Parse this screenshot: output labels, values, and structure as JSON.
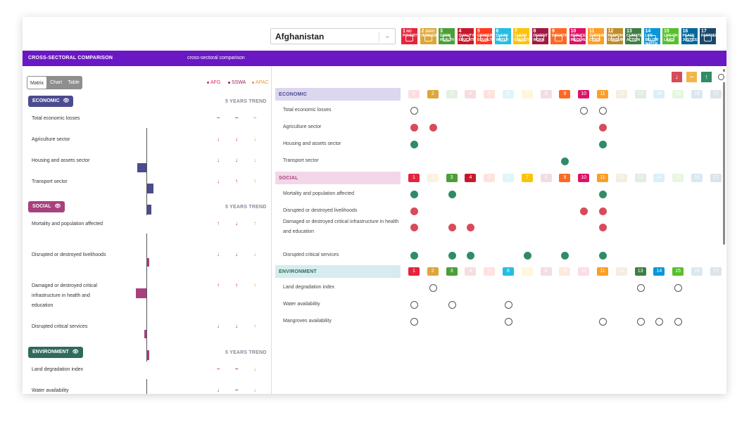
{
  "country": {
    "selected": "Afghanistan"
  },
  "sdg_icons": [
    {
      "n": "1",
      "t": "NO POVERTY",
      "color": "#e5243b"
    },
    {
      "n": "2",
      "t": "ZERO HUNGER",
      "color": "#dda63a"
    },
    {
      "n": "3",
      "t": "GOOD HEALTH",
      "color": "#4c9f38"
    },
    {
      "n": "4",
      "t": "QUALITY EDUCATION",
      "color": "#c5192d"
    },
    {
      "n": "5",
      "t": "GENDER EQUALITY",
      "color": "#ff3a21"
    },
    {
      "n": "6",
      "t": "CLEAN WATER",
      "color": "#26bde2"
    },
    {
      "n": "7",
      "t": "CLEAN ENERGY",
      "color": "#fcc30b"
    },
    {
      "n": "8",
      "t": "DECENT WORK",
      "color": "#a21942"
    },
    {
      "n": "9",
      "t": "INDUSTRY",
      "color": "#fd6925"
    },
    {
      "n": "10",
      "t": "REDUCED INEQUALITIES",
      "color": "#dd1367"
    },
    {
      "n": "11",
      "t": "SUSTAINABLE CITIES",
      "color": "#fd9d24"
    },
    {
      "n": "12",
      "t": "RESPONSIBLE CONSUMPTION",
      "color": "#bf8b2e"
    },
    {
      "n": "13",
      "t": "CLIMATE ACTION",
      "color": "#3f7e44"
    },
    {
      "n": "14",
      "t": "LIFE BELOW WATER",
      "color": "#0a97d9"
    },
    {
      "n": "15",
      "t": "LIFE ON LAND",
      "color": "#56c02b"
    },
    {
      "n": "16",
      "t": "PEACE JUSTICE",
      "color": "#00689d"
    },
    {
      "n": "17",
      "t": "PARTNERSHIPS",
      "color": "#19486a"
    }
  ],
  "header": {
    "title": "CROSS-SECTORAL COMPARISON",
    "subtitle": "cross-sectoral comparison"
  },
  "view_options": [
    "Matrix",
    "Chart",
    "Table"
  ],
  "legend": [
    {
      "label": "AFG",
      "color": "#d0306a"
    },
    {
      "label": "SSWA",
      "color": "#9b1d5a"
    },
    {
      "label": "APAC",
      "color": "#f0963a"
    }
  ],
  "trend_header": "5 YEARS TREND",
  "left_sectors": [
    {
      "name": "ECONOMIC",
      "color": "#4b4b8f",
      "indicators": [
        {
          "label": "Total economic losses",
          "trends": [
            "–",
            "–",
            "–"
          ]
        },
        {
          "label": "Agriculture sector",
          "trends": [
            "↓",
            "↓",
            "↓"
          ]
        },
        {
          "label": "Housing and assets sector",
          "trends": [
            "↓",
            "↓",
            "↓"
          ]
        },
        {
          "label": "Transport sector",
          "trends": [
            "↓",
            "↑",
            "↑"
          ]
        }
      ]
    },
    {
      "name": "SOCIAL",
      "color": "#a8407f",
      "indicators": [
        {
          "label": "Mortality and population affected",
          "trends": [
            "↑",
            "↓",
            "↑"
          ]
        },
        {
          "label": "Disrupted or destroyed livelihoods",
          "trends": [
            "↓",
            "↓",
            "↓"
          ]
        },
        {
          "label": "Damaged or destroyed critical infrastructure in health and education",
          "trends": [
            "↑",
            "↑",
            "↑"
          ]
        },
        {
          "label": "Disrupted critical services",
          "trends": [
            "↓",
            "↓",
            "↑"
          ]
        }
      ]
    },
    {
      "name": "ENVIRONMENT",
      "color": "#2f6b5b",
      "indicators": [
        {
          "label": "Land degradation index",
          "trends": [
            "–",
            "–",
            "↓"
          ]
        },
        {
          "label": "Water availability",
          "trends": [
            "↓",
            "–",
            "↓"
          ]
        }
      ]
    }
  ],
  "trend_colors": {
    "AFG": "#c9304f",
    "SSWA": "#9b1d3a",
    "APAC": "#e8913a"
  },
  "matrix_controls": [
    {
      "symbol": "↓",
      "color": "#d84b5a"
    },
    {
      "symbol": "–",
      "color": "#f1b548"
    },
    {
      "symbol": "↑",
      "color": "#2f8c66"
    },
    {
      "symbol": "○",
      "color": "#ffffff"
    }
  ],
  "matrix_sectors": [
    {
      "name": "ECONOMIC",
      "bg": "#dcd6ef",
      "fg": "#4b4b8f",
      "active": [
        2,
        9,
        10,
        11
      ],
      "rows": [
        {
          "label": "Total economic losses",
          "marks": [
            [
              1,
              "o"
            ],
            [
              10,
              "o"
            ],
            [
              11,
              "o"
            ]
          ]
        },
        {
          "label": "Agriculture sector",
          "marks": [
            [
              1,
              "r"
            ],
            [
              2,
              "r"
            ],
            [
              11,
              "r"
            ]
          ]
        },
        {
          "label": "Housing and assets sector",
          "marks": [
            [
              1,
              "g"
            ],
            [
              11,
              "g"
            ]
          ]
        },
        {
          "label": "Transport sector",
          "marks": [
            [
              9,
              "g"
            ]
          ]
        }
      ]
    },
    {
      "name": "SOCIAL",
      "bg": "#f3d7e8",
      "fg": "#a8407f",
      "active": [
        1,
        3,
        4,
        7,
        9,
        10,
        11
      ],
      "rows": [
        {
          "label": "Mortality and population affected",
          "marks": [
            [
              1,
              "g"
            ],
            [
              3,
              "g"
            ],
            [
              11,
              "g"
            ]
          ]
        },
        {
          "label": "Disrupted or destroyed livelihoods",
          "marks": [
            [
              1,
              "r"
            ],
            [
              10,
              "r"
            ],
            [
              11,
              "r"
            ]
          ]
        },
        {
          "label": "Damaged or destroyed critical infrastructure in health and education",
          "marks": [
            [
              1,
              "r"
            ],
            [
              3,
              "r"
            ],
            [
              4,
              "r"
            ],
            [
              11,
              "r"
            ]
          ]
        },
        {
          "label": "Disrupted critical services",
          "marks": [
            [
              1,
              "g"
            ],
            [
              3,
              "g"
            ],
            [
              4,
              "g"
            ],
            [
              7,
              "g"
            ],
            [
              9,
              "g"
            ],
            [
              11,
              "g"
            ]
          ]
        }
      ]
    },
    {
      "name": "ENVIRONMENT",
      "bg": "#d6ecee",
      "fg": "#2f6b5b",
      "active": [
        1,
        2,
        3,
        6,
        11,
        13,
        14,
        15
      ],
      "rows": [
        {
          "label": "Land degradation index",
          "marks": [
            [
              2,
              "o"
            ],
            [
              13,
              "o"
            ],
            [
              15,
              "o"
            ]
          ]
        },
        {
          "label": "Water availability",
          "marks": [
            [
              1,
              "o"
            ],
            [
              3,
              "o"
            ],
            [
              6,
              "o"
            ]
          ]
        },
        {
          "label": "Mangroves availability",
          "marks": [
            [
              1,
              "o"
            ],
            [
              6,
              "o"
            ],
            [
              11,
              "o"
            ],
            [
              13,
              "o"
            ],
            [
              14,
              "o"
            ],
            [
              15,
              "o"
            ]
          ]
        }
      ]
    }
  ]
}
